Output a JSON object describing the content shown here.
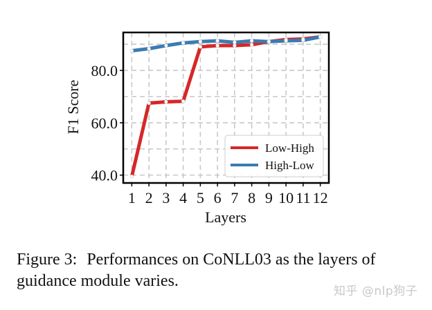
{
  "chart_data": {
    "type": "line",
    "x": [
      1,
      2,
      3,
      4,
      5,
      6,
      7,
      8,
      9,
      10,
      11,
      12
    ],
    "series": [
      {
        "name": "Low-High",
        "color": "#d62728",
        "values": [
          39.5,
          67.5,
          68.0,
          68.2,
          89.0,
          89.5,
          89.5,
          89.8,
          91.0,
          91.8,
          92.0,
          92.8
        ]
      },
      {
        "name": "High-Low",
        "color": "#3b7bb3",
        "values": [
          87.5,
          88.3,
          89.5,
          90.5,
          91.0,
          91.3,
          90.7,
          91.3,
          91.0,
          91.3,
          91.5,
          92.8
        ]
      }
    ],
    "xlabel": "Layers",
    "ylabel": "F1 Score",
    "xticks": [
      "1",
      "2",
      "3",
      "4",
      "5",
      "6",
      "7",
      "8",
      "9",
      "10",
      "11",
      "12"
    ],
    "yticks": [
      "40.0",
      "60.0",
      "80.0"
    ],
    "ytick_values": [
      40,
      60,
      80
    ],
    "xlim": [
      0.5,
      12.5
    ],
    "ylim": [
      37.0,
      94.5
    ],
    "grid": true,
    "legend": "lower-right"
  },
  "caption": {
    "label": "Figure 3:",
    "text": "Performances on CoNLL03 as the layers of guidance module varies."
  },
  "watermark": "知乎 @nlp狗子"
}
